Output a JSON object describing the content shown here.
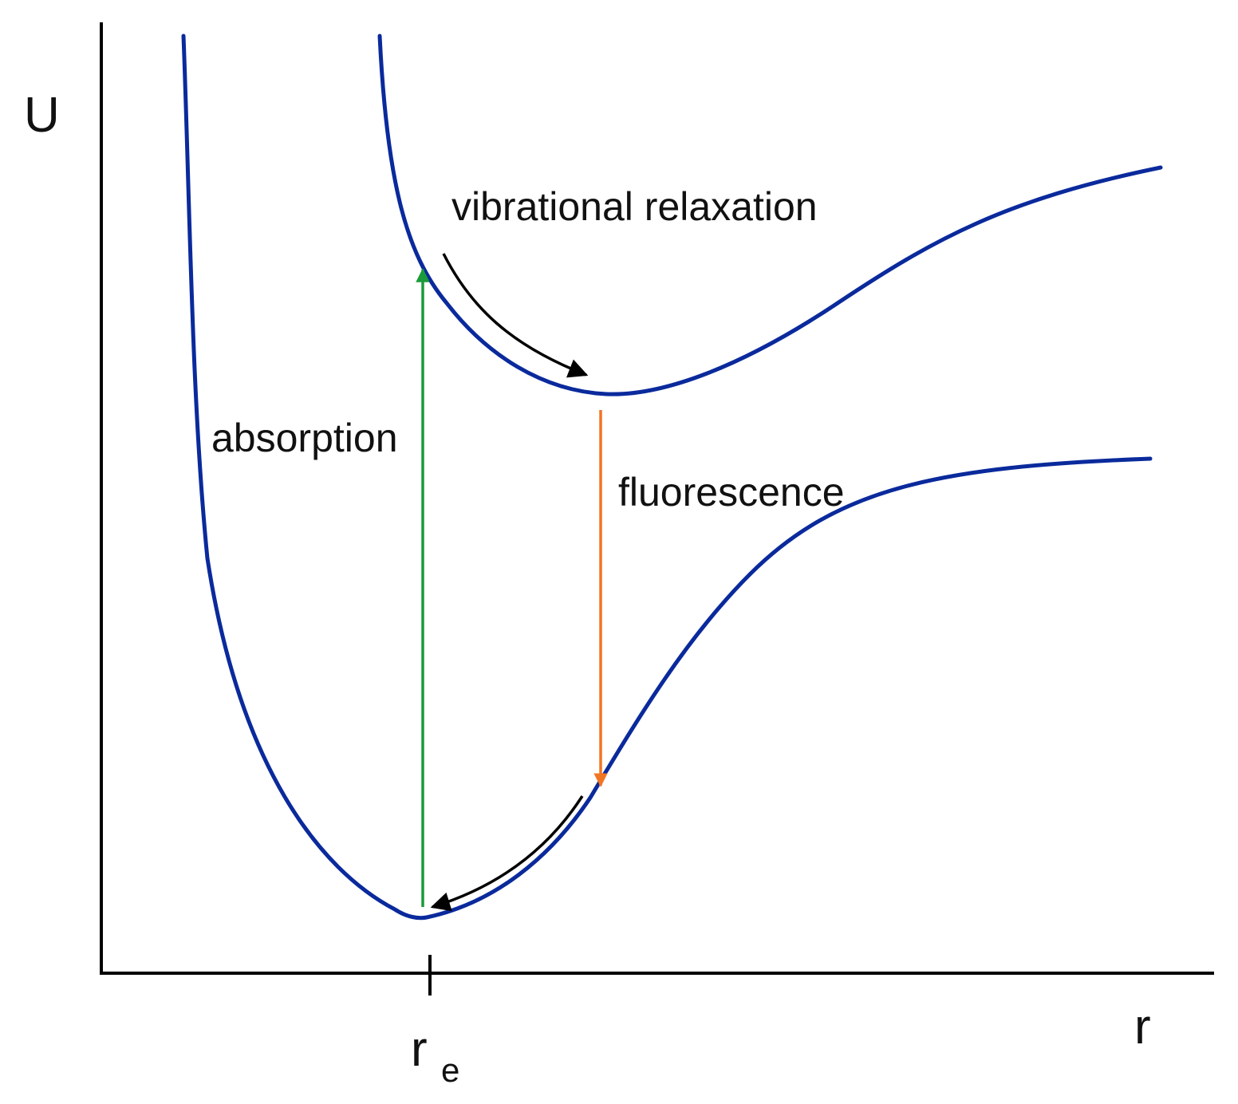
{
  "diagram": {
    "axes": {
      "y_label": "U",
      "x_label": "r",
      "tick_label": "r",
      "tick_subscript": "e",
      "axis_color": "#000000"
    },
    "curves": {
      "ground_state": {
        "color": "#0a2a9c"
      },
      "excited_state": {
        "color": "#0a2a9c"
      }
    },
    "transitions": {
      "absorption": {
        "label": "absorption",
        "color": "#1a9a3a"
      },
      "fluorescence": {
        "label": "fluorescence",
        "color": "#f27522"
      },
      "vibrational_relaxation": {
        "label": "vibrational relaxation",
        "color": "#000000"
      },
      "ground_relaxation": {
        "color": "#000000"
      }
    }
  }
}
